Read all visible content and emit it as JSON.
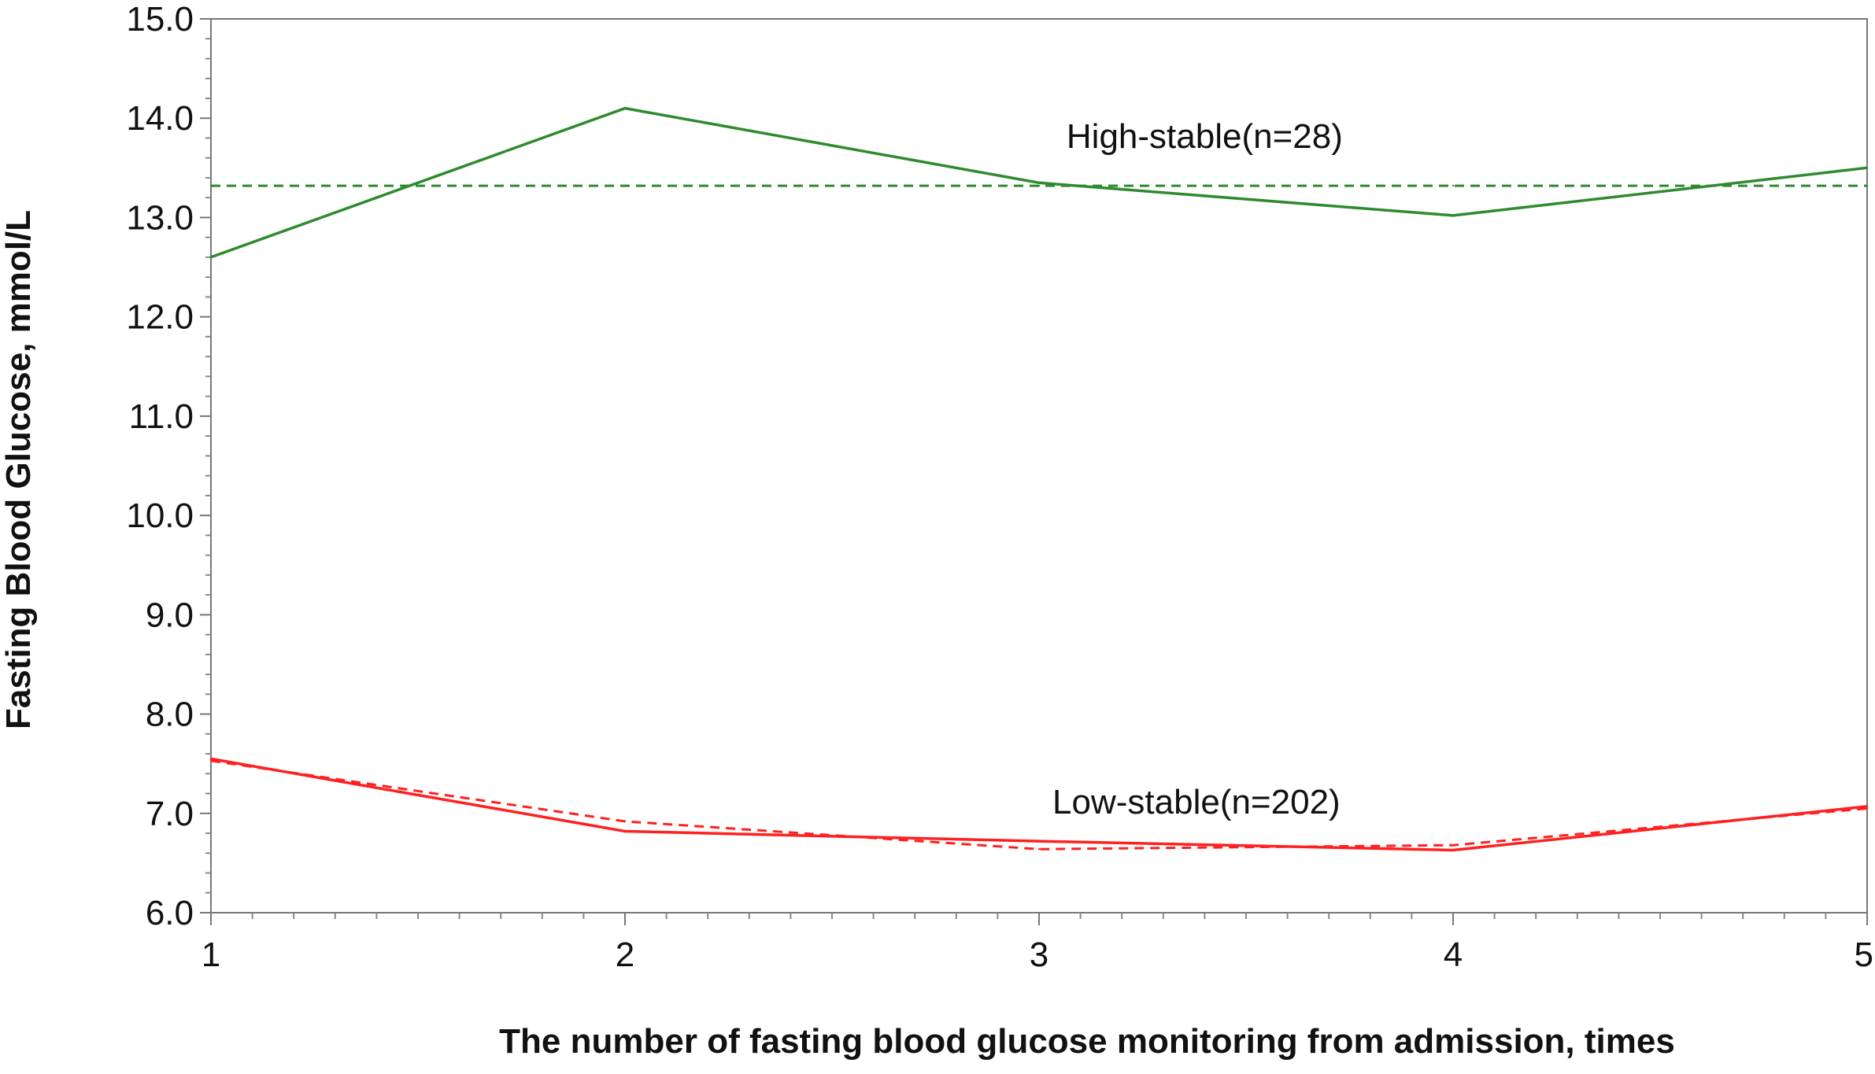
{
  "chart_data": {
    "type": "line",
    "title": "",
    "xlabel": "The number of fasting blood glucose monitoring from admission, times",
    "ylabel": "Fasting Blood Glucose, mmol/L",
    "x": [
      1,
      2,
      3,
      4,
      5
    ],
    "x_tick_labels": [
      "1",
      "2",
      "3",
      "4",
      "5"
    ],
    "xlim": [
      1,
      5
    ],
    "ylim": [
      6.0,
      15.0
    ],
    "y_ticks": [
      6.0,
      7.0,
      8.0,
      9.0,
      10.0,
      11.0,
      12.0,
      13.0,
      14.0,
      15.0
    ],
    "y_tick_labels": [
      "6.0",
      "7.0",
      "8.0",
      "9.0",
      "10.0",
      "11.0",
      "12.0",
      "13.0",
      "14.0",
      "15.0"
    ],
    "grid": false,
    "series": [
      {
        "name": "High-stable(n=28) observed",
        "style": "solid",
        "color": "#2e8b2e",
        "values": [
          12.6,
          14.1,
          13.35,
          13.02,
          13.5
        ]
      },
      {
        "name": "High-stable(n=28) estimated",
        "style": "dashed",
        "color": "#2e8b2e",
        "values": [
          13.32,
          13.32,
          13.32,
          13.32,
          13.32
        ]
      },
      {
        "name": "Low-stable(n=202) observed",
        "style": "solid",
        "color": "#ff2020",
        "values": [
          7.55,
          6.82,
          6.72,
          6.63,
          7.07
        ]
      },
      {
        "name": "Low-stable(n=202) estimated",
        "style": "dashed",
        "color": "#ff2020",
        "values": [
          7.53,
          6.92,
          6.64,
          6.68,
          7.05
        ]
      }
    ],
    "annotations": [
      {
        "text": "High-stable(n=28)",
        "x": 3.4,
        "y": 13.7
      },
      {
        "text": "Low-stable(n=202)",
        "x": 3.38,
        "y": 7.0
      }
    ]
  }
}
